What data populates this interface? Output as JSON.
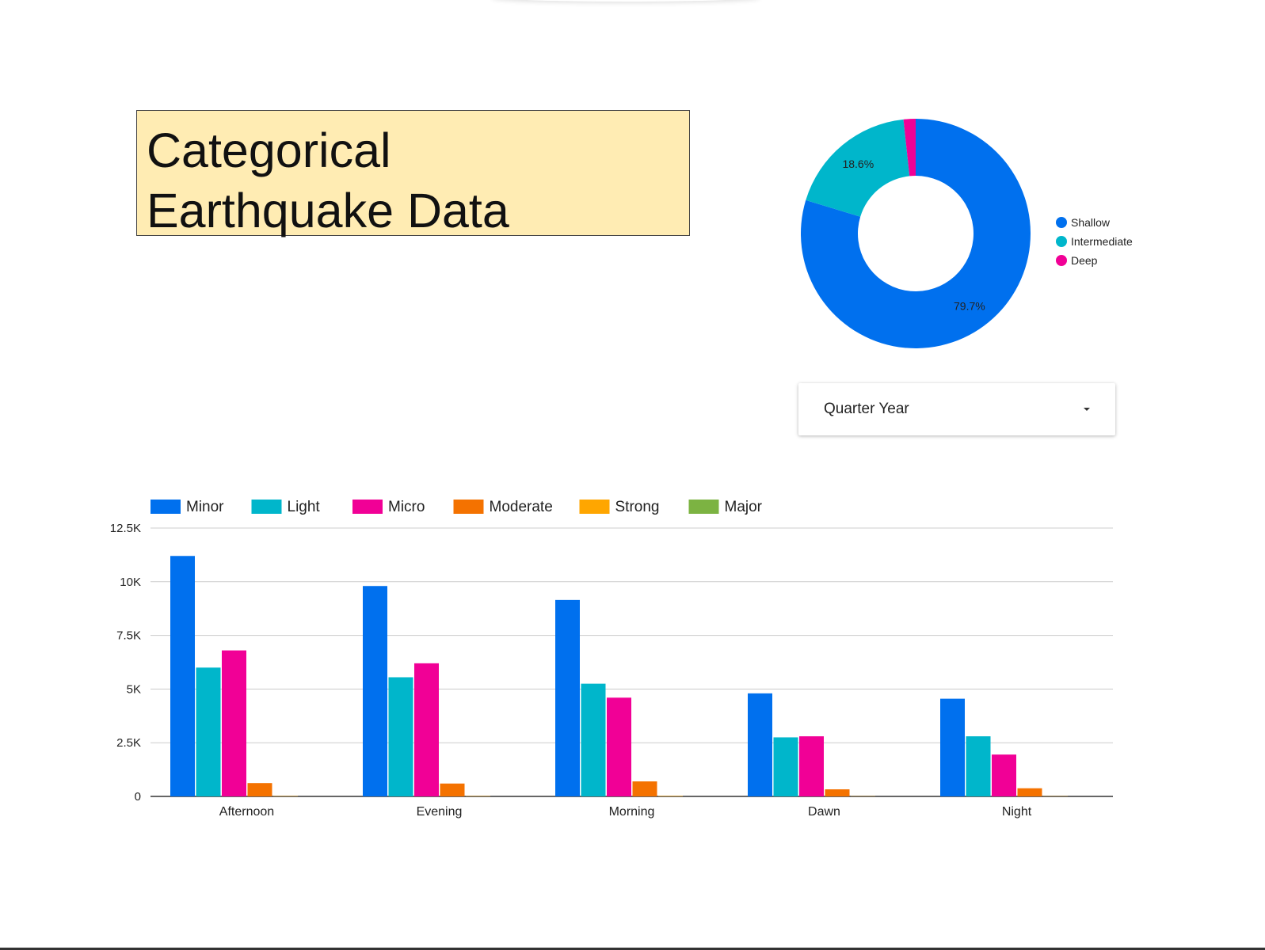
{
  "title": {
    "line1": "Categorical",
    "line2": "Earthquake Data"
  },
  "filter": {
    "label": "Quarter Year"
  },
  "colors": {
    "title_background": "#ffecb3",
    "Minor": "#0070ee",
    "Light": "#00b6cb",
    "Micro": "#f10096",
    "Moderate": "#f47200",
    "Strong": "#ffa600",
    "Major": "#7cb342",
    "Shallow": "#0070ee",
    "Intermediate": "#00b6cb",
    "Deep": "#f10096"
  },
  "chart_data": [
    {
      "type": "pie",
      "variant": "donut",
      "legend_position": "right",
      "slices": [
        {
          "name": "Shallow",
          "value": 79.7,
          "label": "79.7%"
        },
        {
          "name": "Intermediate",
          "value": 18.6,
          "label": "18.6%"
        },
        {
          "name": "Deep",
          "value": 1.7,
          "label": ""
        }
      ]
    },
    {
      "type": "bar",
      "legend_position": "top-left",
      "grid": true,
      "categories": [
        "Afternoon",
        "Evening",
        "Morning",
        "Dawn",
        "Night"
      ],
      "ylim": [
        0,
        12500
      ],
      "yticks": [
        0,
        2500,
        5000,
        7500,
        10000,
        12500
      ],
      "ytick_labels": [
        "0",
        "2.5K",
        "5K",
        "7.5K",
        "10K",
        "12.5K"
      ],
      "series": [
        {
          "name": "Minor",
          "values": [
            11200,
            9800,
            9150,
            4800,
            4550
          ]
        },
        {
          "name": "Light",
          "values": [
            6000,
            5550,
            5250,
            2750,
            2800
          ]
        },
        {
          "name": "Micro",
          "values": [
            6800,
            6200,
            4600,
            2800,
            1950
          ]
        },
        {
          "name": "Moderate",
          "values": [
            620,
            600,
            700,
            330,
            380
          ]
        },
        {
          "name": "Strong",
          "values": [
            15,
            15,
            20,
            10,
            10
          ]
        },
        {
          "name": "Major",
          "values": [
            0,
            0,
            0,
            0,
            0
          ]
        }
      ]
    }
  ]
}
